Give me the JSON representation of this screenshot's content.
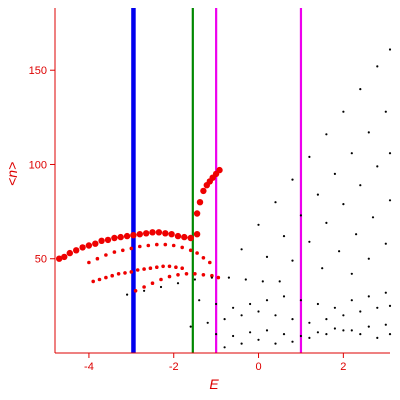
{
  "chart_data": {
    "type": "scatter",
    "title": "",
    "xlabel": "E",
    "ylabel": "<n>",
    "xlim": [
      -4.8,
      3.1
    ],
    "ylim": [
      0,
      183
    ],
    "x_ticks": [
      -4,
      -2,
      0,
      2
    ],
    "y_ticks": [
      50,
      100,
      150
    ],
    "grid": false,
    "colors": {
      "axis": "#dd0000",
      "red_series": "#ee0000",
      "black_series": "#000000"
    },
    "vertical_lines": [
      {
        "x": -2.95,
        "color": "#0000ee",
        "width": "thick"
      },
      {
        "x": -1.55,
        "color": "#008800",
        "width": "medium"
      },
      {
        "x": -1.0,
        "color": "#ee00ee",
        "width": "medium"
      },
      {
        "x": 1.0,
        "color": "#ee00ee",
        "width": "medium"
      }
    ],
    "series": [
      {
        "color": "red",
        "marker": "large",
        "points": [
          [
            -4.82,
            49
          ],
          [
            -4.7,
            50
          ],
          [
            -4.58,
            51
          ],
          [
            -4.45,
            53
          ],
          [
            -4.3,
            54.5
          ],
          [
            -4.15,
            56
          ],
          [
            -4.0,
            57
          ],
          [
            -3.85,
            58
          ],
          [
            -3.7,
            59.5
          ],
          [
            -3.55,
            60
          ],
          [
            -3.4,
            61
          ],
          [
            -3.25,
            61.5
          ],
          [
            -3.1,
            62
          ],
          [
            -2.95,
            62.5
          ],
          [
            -2.8,
            63
          ],
          [
            -2.65,
            63.5
          ],
          [
            -2.5,
            64
          ],
          [
            -2.35,
            64
          ],
          [
            -2.2,
            63.5
          ],
          [
            -2.05,
            63
          ],
          [
            -1.9,
            62
          ],
          [
            -1.75,
            61.5
          ],
          [
            -1.6,
            61
          ],
          [
            -1.45,
            63
          ]
        ]
      },
      {
        "color": "red",
        "marker": "small",
        "points": [
          [
            -4.0,
            48
          ],
          [
            -3.8,
            50
          ],
          [
            -3.6,
            52
          ],
          [
            -3.4,
            53.5
          ],
          [
            -3.2,
            54.5
          ],
          [
            -3.0,
            55.5
          ],
          [
            -2.8,
            56.5
          ],
          [
            -2.6,
            57
          ],
          [
            -2.4,
            57.5
          ],
          [
            -2.2,
            57.5
          ],
          [
            -2.0,
            57
          ],
          [
            -1.8,
            56
          ],
          [
            -1.6,
            54.5
          ],
          [
            -1.45,
            53
          ],
          [
            -1.3,
            50.5
          ],
          [
            -1.15,
            48
          ]
        ]
      },
      {
        "color": "red",
        "marker": "small",
        "points": [
          [
            -3.9,
            38
          ],
          [
            -3.75,
            39
          ],
          [
            -3.6,
            40
          ],
          [
            -3.45,
            41
          ],
          [
            -3.3,
            42
          ],
          [
            -3.15,
            42.5
          ],
          [
            -3.0,
            43
          ],
          [
            -2.85,
            44
          ],
          [
            -2.7,
            44.5
          ],
          [
            -2.55,
            45
          ],
          [
            -2.4,
            45.5
          ],
          [
            -2.25,
            46
          ],
          [
            -2.1,
            46
          ],
          [
            -1.95,
            45.5
          ],
          [
            -1.8,
            45
          ]
        ]
      },
      {
        "color": "red",
        "marker": "small",
        "points": [
          [
            -2.9,
            33
          ],
          [
            -2.7,
            35
          ],
          [
            -2.5,
            37
          ],
          [
            -2.3,
            39
          ],
          [
            -2.1,
            40.5
          ],
          [
            -1.9,
            41.5
          ],
          [
            -1.7,
            42
          ],
          [
            -1.5,
            42
          ],
          [
            -1.3,
            41.5
          ],
          [
            -1.1,
            41
          ],
          [
            -0.95,
            40
          ]
        ]
      },
      {
        "color": "red",
        "marker": "large",
        "points": [
          [
            -1.45,
            74
          ],
          [
            -1.38,
            80
          ],
          [
            -1.3,
            86
          ],
          [
            -1.22,
            89
          ],
          [
            -1.15,
            91
          ],
          [
            -1.08,
            93
          ],
          [
            -1.0,
            95
          ],
          [
            -0.92,
            97
          ]
        ]
      },
      {
        "color": "black",
        "marker": "small",
        "points": [
          [
            -0.4,
            55
          ],
          [
            0.0,
            68
          ],
          [
            0.4,
            80
          ],
          [
            0.8,
            92
          ],
          [
            1.2,
            104
          ],
          [
            1.6,
            116
          ],
          [
            2.0,
            128
          ],
          [
            2.4,
            140
          ],
          [
            2.8,
            152
          ],
          [
            3.1,
            161
          ]
        ]
      },
      {
        "color": "black",
        "marker": "small",
        "points": [
          [
            0.2,
            51
          ],
          [
            0.6,
            62
          ],
          [
            1.0,
            73
          ],
          [
            1.4,
            84
          ],
          [
            1.8,
            95
          ],
          [
            2.2,
            106
          ],
          [
            2.6,
            117
          ],
          [
            3.0,
            128
          ]
        ]
      },
      {
        "color": "black",
        "marker": "small",
        "points": [
          [
            0.8,
            49
          ],
          [
            1.2,
            59
          ],
          [
            1.6,
            69
          ],
          [
            2.0,
            79
          ],
          [
            2.4,
            89
          ],
          [
            2.8,
            99
          ],
          [
            3.1,
            106
          ]
        ]
      },
      {
        "color": "black",
        "marker": "small",
        "points": [
          [
            1.5,
            45
          ],
          [
            1.9,
            54
          ],
          [
            2.3,
            63
          ],
          [
            2.7,
            72
          ],
          [
            3.1,
            81
          ]
        ]
      },
      {
        "color": "black",
        "marker": "small",
        "points": [
          [
            2.2,
            42
          ],
          [
            2.6,
            50
          ],
          [
            3.0,
            58
          ]
        ]
      },
      {
        "color": "black",
        "marker": "small",
        "points": [
          [
            -3.1,
            31
          ],
          [
            -2.7,
            33
          ],
          [
            -2.3,
            35
          ],
          [
            -1.9,
            37
          ],
          [
            -1.5,
            39
          ],
          [
            -1.1,
            40
          ],
          [
            -0.7,
            40
          ],
          [
            -0.3,
            39
          ],
          [
            0.1,
            38
          ],
          [
            0.5,
            38
          ]
        ]
      },
      {
        "color": "black",
        "marker": "small",
        "points": [
          [
            -1.6,
            14
          ],
          [
            -1.2,
            16
          ],
          [
            -0.8,
            18
          ],
          [
            -0.4,
            20
          ],
          [
            0.0,
            22
          ],
          [
            0.4,
            20
          ],
          [
            0.8,
            18
          ],
          [
            1.2,
            16
          ],
          [
            1.6,
            18
          ],
          [
            2.0,
            20
          ],
          [
            2.4,
            22
          ],
          [
            2.8,
            24
          ],
          [
            3.1,
            25
          ]
        ]
      },
      {
        "color": "black",
        "marker": "small",
        "points": [
          [
            -1.4,
            28
          ],
          [
            -1.0,
            26
          ],
          [
            -0.6,
            24
          ],
          [
            -0.2,
            26
          ],
          [
            0.2,
            28
          ],
          [
            0.6,
            30
          ],
          [
            1.0,
            28
          ],
          [
            1.4,
            26
          ],
          [
            1.8,
            24
          ],
          [
            2.2,
            28
          ],
          [
            2.6,
            30
          ],
          [
            3.0,
            32
          ]
        ]
      },
      {
        "color": "black",
        "marker": "small",
        "points": [
          [
            -1.0,
            10
          ],
          [
            -0.6,
            9
          ],
          [
            -0.2,
            11
          ],
          [
            0.2,
            12
          ],
          [
            0.6,
            10
          ],
          [
            1.0,
            9
          ],
          [
            1.4,
            11
          ],
          [
            1.8,
            13
          ],
          [
            2.2,
            12
          ],
          [
            2.6,
            14
          ],
          [
            3.0,
            15
          ]
        ]
      },
      {
        "color": "black",
        "marker": "small",
        "points": [
          [
            -0.8,
            3
          ],
          [
            -0.4,
            5
          ],
          [
            0.0,
            7
          ],
          [
            0.4,
            5
          ],
          [
            0.8,
            6
          ],
          [
            1.2,
            8
          ],
          [
            1.6,
            10
          ],
          [
            2.0,
            12
          ],
          [
            2.4,
            10
          ],
          [
            2.8,
            8
          ],
          [
            3.1,
            10
          ]
        ]
      }
    ]
  }
}
